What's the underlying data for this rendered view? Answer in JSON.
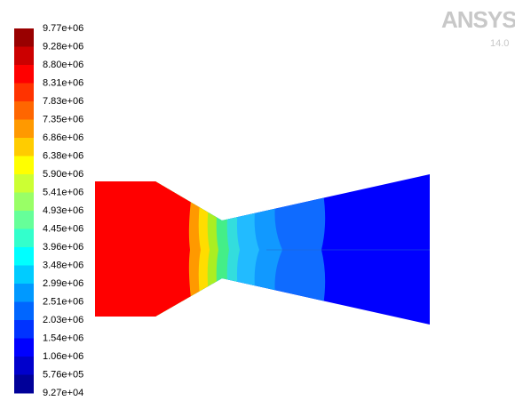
{
  "logo": {
    "brand": "ANSYS",
    "version": "14.0"
  },
  "legend": {
    "labels": [
      "9.77e+06",
      "9.28e+06",
      "8.80e+06",
      "8.31e+06",
      "7.83e+06",
      "7.35e+06",
      "6.86e+06",
      "6.38e+06",
      "5.90e+06",
      "5.41e+06",
      "4.93e+06",
      "4.45e+06",
      "3.96e+06",
      "3.48e+06",
      "2.99e+06",
      "2.51e+06",
      "2.03e+06",
      "1.54e+06",
      "1.06e+06",
      "5.76e+05",
      "9.27e+04"
    ]
  }
}
